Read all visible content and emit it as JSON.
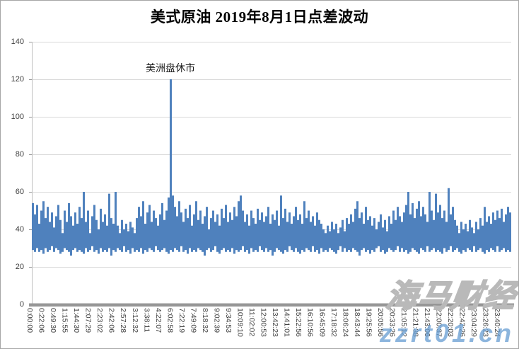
{
  "title": "美式原油 2019年8月1日点差波动",
  "annotation": {
    "text": "美洲盘休市"
  },
  "watermark": {
    "cn": "海马财经",
    "en": "zzrt01.cn"
  },
  "chart_data": {
    "type": "line",
    "title": "美式原油 2019年8月1日点差波动",
    "xlabel": "",
    "ylabel": "",
    "ylim": [
      0,
      140
    ],
    "y_ticks": [
      0,
      20,
      40,
      60,
      80,
      100,
      120,
      140
    ],
    "grid": "horizontal",
    "legend": "none",
    "annotation": {
      "text": "美洲盘休市",
      "at_time": "6:02:58",
      "value": 120
    },
    "x_tick_labels": [
      "0:00:00",
      "0:22:06",
      "0:49:30",
      "1:15:55",
      "1:44:30",
      "2:07:29",
      "2:23:02",
      "2:42:06",
      "2:57:28",
      "3:12:32",
      "3:38:11",
      "4:22:07",
      "6:02:58",
      "7:22:19",
      "7:49:09",
      "8:18:32",
      "9:02:39",
      "9:34:53",
      "10:09:10",
      "11:02:02",
      "12:00:53",
      "13:42:23",
      "14:41:01",
      "15:22:56",
      "16:10:56",
      "16:45:09",
      "17:18:32",
      "18:06:24",
      "18:43:44",
      "19:25:56",
      "20:05:56",
      "20:33:26",
      "21:05:12",
      "21:21:38",
      "21:43:06",
      "22:00:37",
      "22:20:03",
      "22:42:26",
      "23:04:29",
      "23:26:23",
      "23:40:24"
    ],
    "series_note": "high-frequency spread; rendered as per-sample [low,high] envelope, typical band 28-55, single spike to 120 at 6:02:58 (美洲盘休市)",
    "envelope_high": [
      54,
      48,
      53,
      43,
      50,
      55,
      46,
      52,
      44,
      49,
      41,
      47,
      53,
      45,
      38,
      50,
      44,
      54,
      47,
      42,
      49,
      43,
      52,
      46,
      60,
      44,
      50,
      38,
      47,
      53,
      45,
      40,
      51,
      44,
      48,
      42,
      59,
      46,
      43,
      60,
      42,
      38,
      45,
      40,
      43,
      39,
      44,
      41,
      38,
      46,
      52,
      47,
      55,
      43,
      49,
      53,
      44,
      50,
      46,
      42,
      48,
      54,
      45,
      50,
      57,
      120,
      58,
      52,
      47,
      55,
      49,
      44,
      51,
      46,
      53,
      42,
      48,
      55,
      45,
      50,
      43,
      47,
      52,
      40,
      46,
      50,
      44,
      48,
      42,
      51,
      46,
      53,
      44,
      49,
      45,
      52,
      47,
      55,
      58,
      50,
      44,
      48,
      42,
      50,
      46,
      43,
      51,
      45,
      49,
      44,
      47,
      52,
      43,
      48,
      45,
      50,
      42,
      58,
      46,
      51,
      44,
      49,
      43,
      47,
      52,
      45,
      48,
      43,
      55,
      46,
      50,
      44,
      47,
      42,
      49,
      45,
      43,
      40,
      38,
      42,
      39,
      44,
      40,
      43,
      38,
      41,
      45,
      39,
      46,
      43,
      48,
      44,
      51,
      55,
      46,
      49,
      43,
      52,
      45,
      47,
      42,
      46,
      40,
      44,
      48,
      41,
      45,
      39,
      47,
      43,
      50,
      45,
      52,
      47,
      44,
      49,
      53,
      60,
      48,
      54,
      46,
      51,
      55,
      47,
      52,
      48,
      44,
      60,
      50,
      45,
      59,
      49,
      53,
      46,
      50,
      44,
      62,
      48,
      52,
      45,
      42,
      38,
      44,
      40,
      43,
      39,
      45,
      41,
      38,
      44,
      40,
      46,
      42,
      52,
      44,
      47,
      43,
      49,
      45,
      50,
      46,
      51,
      44,
      48,
      52,
      49
    ],
    "envelope_low": [
      29,
      28,
      30,
      28,
      29,
      27,
      30,
      28,
      29,
      31,
      28,
      30,
      29,
      27,
      28,
      30,
      29,
      28,
      26,
      29,
      30,
      28,
      29,
      28,
      27,
      30,
      28,
      29,
      31,
      28,
      29,
      27,
      30,
      28,
      29,
      28,
      30,
      26,
      29,
      28,
      30,
      29,
      28,
      31,
      28,
      29,
      27,
      30,
      28,
      29,
      28,
      30,
      27,
      29,
      28,
      30,
      29,
      28,
      31,
      29,
      28,
      29,
      30,
      28,
      27,
      29,
      28,
      30,
      29,
      28,
      31,
      28,
      29,
      27,
      30,
      28,
      29,
      28,
      30,
      29,
      28,
      26,
      29,
      30,
      28,
      29,
      31,
      28,
      27,
      29,
      30,
      28,
      29,
      28,
      30,
      27,
      29,
      28,
      29,
      31,
      28,
      29,
      27,
      30,
      28,
      29,
      28,
      31,
      29,
      28,
      30,
      28,
      29,
      26,
      28,
      30,
      29,
      28,
      27,
      29,
      28,
      31,
      29,
      28,
      30,
      28,
      27,
      29,
      28,
      30,
      29,
      28,
      31,
      28,
      29,
      27,
      30,
      28,
      29,
      28,
      30,
      29,
      28,
      27,
      29,
      31,
      28,
      30,
      28,
      29,
      28,
      30,
      29,
      28,
      26,
      29,
      30,
      28,
      29,
      27,
      29,
      28,
      30,
      31,
      28,
      29,
      27,
      28,
      30,
      29,
      28,
      29,
      31,
      28,
      30,
      28,
      29,
      27,
      28,
      30,
      29,
      28,
      27,
      30,
      29,
      28,
      31,
      28,
      29,
      30,
      28,
      29,
      28,
      27,
      30,
      28,
      29,
      31,
      28,
      29,
      30,
      28,
      27,
      29,
      28,
      30,
      29,
      28,
      31,
      28,
      29,
      30,
      28,
      27,
      29,
      28,
      30,
      29,
      28,
      31,
      28,
      29,
      30,
      28,
      29,
      28
    ],
    "colors": {
      "bar": "#4f81bd",
      "gridline": "#d9d9d9",
      "axis_line": "#bfbfbf",
      "axis_strip": "#969696",
      "tick_label": "#3f3f3f"
    }
  }
}
